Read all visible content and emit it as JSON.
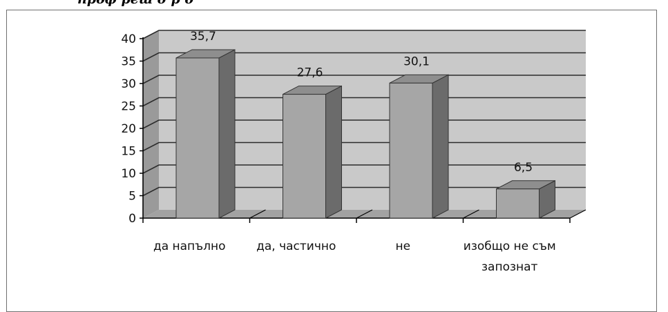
{
  "top_text": "проф реш                д                                        р         д",
  "chart_data": {
    "type": "bar",
    "title": "",
    "xlabel": "",
    "ylabel": "",
    "categories": [
      "да напълно",
      "да, частично",
      "не",
      "изобщо не съм запознат"
    ],
    "category_lines": [
      [
        "да напълно"
      ],
      [
        "да, частично"
      ],
      [
        "не"
      ],
      [
        "изобщо не съм",
        "запознат"
      ]
    ],
    "values": [
      35.7,
      27.6,
      30.1,
      6.5
    ],
    "value_labels": [
      "35,7",
      "27,6",
      "30,1",
      "6,5"
    ],
    "ylim": [
      0,
      40
    ],
    "yticks": [
      0,
      5,
      10,
      15,
      20,
      25,
      30,
      35,
      40
    ],
    "grid": true,
    "three_d": true,
    "legend": "none",
    "colors": {
      "bar_front": "#a6a6a6",
      "bar_top": "#8e8e8e",
      "bar_side": "#6b6b6b",
      "wall": "#c9c9c9",
      "floor": "#a2a2a2",
      "gridline": "#2b2b2b"
    }
  }
}
